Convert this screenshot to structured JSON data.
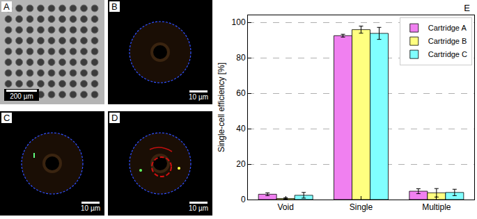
{
  "panels": [
    {
      "label": "A",
      "scale_bar": "200 µm"
    },
    {
      "label": "B",
      "scale_bar": "10 µm"
    },
    {
      "label": "C",
      "scale_bar": "10 µm"
    },
    {
      "label": "D",
      "scale_bar": "10 µm"
    },
    {
      "label": "E"
    }
  ],
  "chart_data": {
    "type": "bar",
    "y_label": "Single-cell efficiency [%]",
    "categories": [
      "Void",
      "Single",
      "Multiple"
    ],
    "series": [
      {
        "name": "Cartridge A",
        "color": "#f080f0",
        "values": [
          3.0,
          92.5,
          4.7
        ],
        "errors": [
          0.8,
          0.8,
          1.4
        ]
      },
      {
        "name": "Cartridge B",
        "color": "#ffff80",
        "values": [
          0.6,
          95.9,
          3.8
        ],
        "errors": [
          0.4,
          2.0,
          2.4
        ]
      },
      {
        "name": "Cartridge C",
        "color": "#80ffff",
        "values": [
          2.4,
          93.8,
          4.0
        ],
        "errors": [
          1.6,
          3.4,
          1.8
        ]
      }
    ],
    "ylim": [
      0,
      104
    ],
    "yticks": [
      0,
      20,
      40,
      60,
      80,
      100
    ],
    "grid": true,
    "legend": "upper right"
  }
}
